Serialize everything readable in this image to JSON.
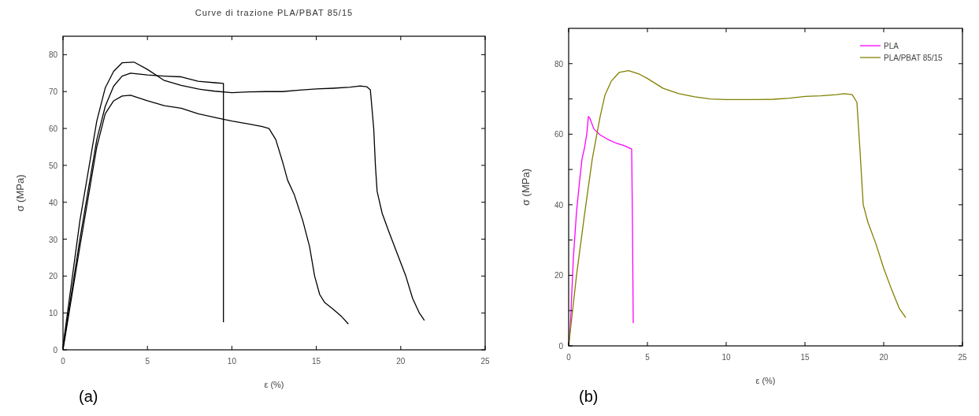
{
  "chart_data": [
    {
      "type": "line",
      "title": "Curve di trazione PLA/PBAT 85/15",
      "xlabel": "ε (%)",
      "ylabel": "σ (MPa)",
      "annotations": [
        "(a)"
      ],
      "xlim": [
        0,
        25
      ],
      "ylim": [
        0,
        85
      ],
      "xticks": [
        0,
        5,
        10,
        15,
        20,
        25
      ],
      "yticks": [
        0,
        10,
        20,
        30,
        40,
        50,
        60,
        70,
        80
      ],
      "legend": false,
      "grid": false,
      "series": [
        {
          "color": "#000000",
          "x": [
            0,
            1,
            2,
            2.5,
            3,
            3.5,
            4.2,
            5,
            6,
            7,
            8,
            9,
            10,
            11,
            12,
            13,
            14,
            15,
            16,
            17,
            17.6,
            18,
            18.2,
            18.4,
            18.5,
            18.6,
            18.9,
            19.3,
            19.8,
            20.3,
            20.7,
            21.1,
            21.4
          ],
          "values": [
            1,
            35,
            62,
            71,
            75.5,
            77.8,
            78,
            76,
            73,
            71.7,
            70.7,
            70.1,
            69.7,
            69.9,
            70,
            70,
            70.4,
            70.7,
            70.9,
            71.2,
            71.5,
            71.3,
            70.5,
            60,
            50,
            43,
            37,
            32,
            26,
            20,
            14,
            10,
            8
          ]
        },
        {
          "color": "#000000",
          "x": [
            0,
            1,
            2,
            2.5,
            3,
            3.5,
            4,
            5,
            6,
            7,
            8,
            9,
            9.5,
            9.5
          ],
          "values": [
            0.5,
            30,
            57,
            66,
            71.5,
            74.2,
            75,
            74.5,
            74.2,
            74,
            72.8,
            72.4,
            72.2,
            7.5
          ]
        },
        {
          "color": "#000000",
          "x": [
            0,
            1,
            2,
            2.5,
            3,
            3.5,
            4,
            5,
            6,
            7,
            8,
            9,
            10,
            11,
            11.8,
            12.2,
            12.6,
            13,
            13.3,
            13.7,
            14.2,
            14.6,
            14.9,
            15.2,
            15.5,
            16,
            16.5,
            16.9
          ],
          "values": [
            0,
            28,
            55,
            64,
            67.5,
            68.8,
            69,
            67.5,
            66.2,
            65.5,
            64,
            63,
            62,
            61.2,
            60.5,
            60,
            57,
            51,
            46,
            42,
            35,
            28,
            20,
            15,
            12.8,
            11,
            9,
            7
          ]
        }
      ]
    },
    {
      "type": "line",
      "xlabel": "ε (%)",
      "ylabel": "σ (MPa)",
      "annotations": [
        "(b)"
      ],
      "xlim": [
        0,
        25
      ],
      "ylim": [
        0,
        90
      ],
      "xticks": [
        0,
        5,
        10,
        15,
        20,
        25
      ],
      "yticks": [
        0,
        {
          "value": 10,
          "label": null
        },
        20,
        {
          "value": 30,
          "label": null
        },
        40,
        {
          "value": 50,
          "label": null
        },
        60,
        {
          "value": 70,
          "label": null
        },
        80
      ],
      "legend": "top right",
      "grid": false,
      "series": [
        {
          "name": "PLA",
          "color": "#ff00ff",
          "x": [
            0,
            0.1,
            0.15,
            0.3,
            0.5,
            0.7,
            0.85,
            1,
            1.15,
            1.25,
            1.35,
            1.6,
            2,
            2.5,
            3,
            3.5,
            4,
            4.05,
            4.1
          ],
          "values": [
            0,
            5,
            10,
            25,
            38,
            47,
            53,
            56,
            60,
            65,
            64.5,
            61.5,
            59.8,
            58.5,
            57.5,
            56.8,
            55.8,
            35,
            6.5
          ]
        },
        {
          "name": "PLA/PBAT 85/15",
          "color": "#808000",
          "x": [
            0,
            0.2,
            0.5,
            1,
            1.5,
            2,
            2.3,
            2.7,
            3.2,
            3.8,
            4.5,
            5,
            6,
            7,
            8,
            9,
            10,
            11,
            12,
            13,
            14,
            15,
            16,
            17,
            17.5,
            18,
            18.3,
            18.5,
            18.7,
            19,
            19.5,
            20,
            20.5,
            21,
            21.4
          ],
          "values": [
            0,
            8,
            20,
            37,
            53,
            65,
            71,
            75,
            77.5,
            78,
            77,
            75.8,
            73,
            71.5,
            70.6,
            70,
            69.8,
            69.8,
            69.8,
            69.9,
            70.2,
            70.7,
            70.9,
            71.2,
            71.5,
            71.2,
            69,
            55,
            40,
            35,
            29,
            22,
            16,
            10.5,
            8
          ]
        }
      ]
    }
  ]
}
